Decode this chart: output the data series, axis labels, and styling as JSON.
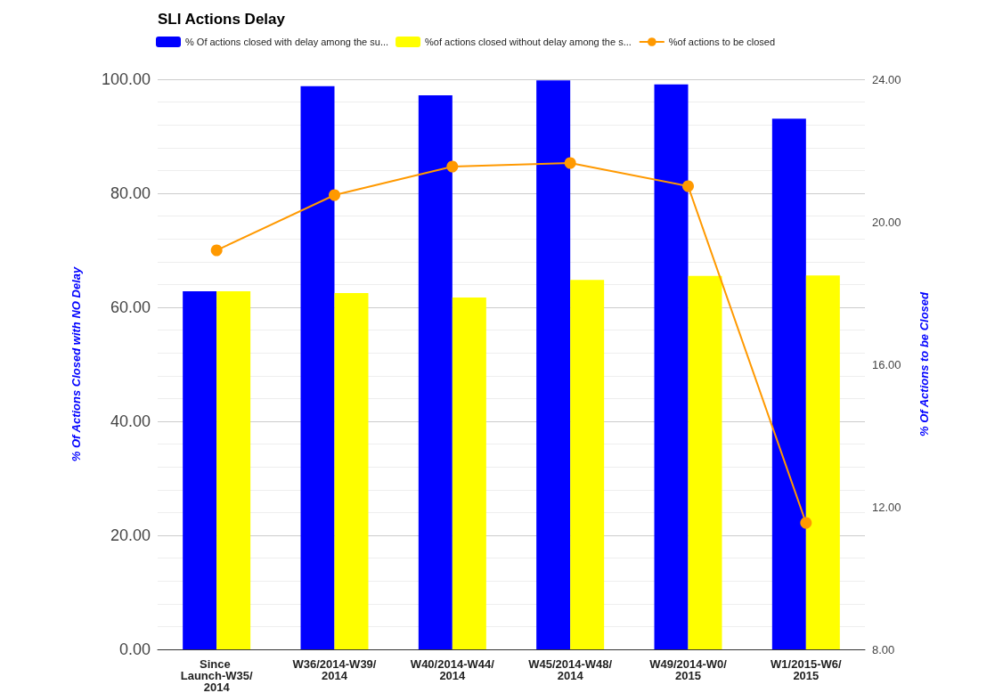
{
  "chart_data": {
    "type": "bar",
    "title": "SLI Actions Delay",
    "ylabel": "% Of Actions Closed with NO Delay",
    "y2label": "% Of Actions to be Closed",
    "categories": [
      "Since Launch-W35/2014",
      "W36/2014-W39/2014",
      "W40/2014-W44/2014",
      "W45/2014-W48/2014",
      "W49/2014-W0/2015",
      "W1/2015-W6/2015"
    ],
    "series": [
      {
        "name": "% Of actions closed with delay among the su...",
        "color": "#0000ff",
        "values": [
          62.8,
          98.8,
          97.2,
          99.8,
          99.1,
          93.1
        ]
      },
      {
        "name": "%of actions closed without delay among the s...",
        "color": "#ffff00",
        "values": [
          62.8,
          62.5,
          61.7,
          64.8,
          65.5,
          65.6
        ]
      },
      {
        "name": "%of actions to be closed",
        "type": "line",
        "axis": "y2",
        "color": "#ff9900",
        "values": [
          19.2,
          20.75,
          21.55,
          21.65,
          21.0,
          11.55
        ]
      }
    ],
    "ylim": [
      0,
      100
    ],
    "yticks": [
      {
        "value": 0,
        "label": "0.00"
      },
      {
        "value": 20,
        "label": "20.00"
      },
      {
        "value": 40,
        "label": "40.00"
      },
      {
        "value": 60,
        "label": "60.00"
      },
      {
        "value": 80,
        "label": "80.00"
      },
      {
        "value": 100,
        "label": "100.00"
      }
    ],
    "y2lim": [
      8,
      24
    ],
    "y2ticks": [
      {
        "value": 8,
        "label": "8.00"
      },
      {
        "value": 12,
        "label": "12.00"
      },
      {
        "value": 16,
        "label": "16.00"
      },
      {
        "value": 20,
        "label": "20.00"
      },
      {
        "value": 24,
        "label": "24.00"
      }
    ],
    "grid": true,
    "legend": "top left",
    "marker": "circle",
    "line_style": "solid"
  }
}
